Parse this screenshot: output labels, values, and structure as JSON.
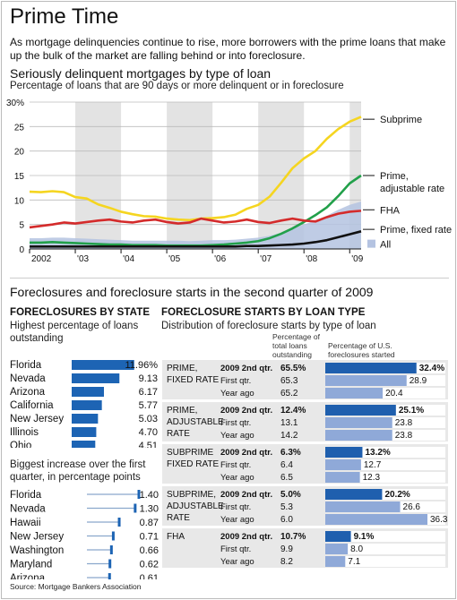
{
  "title": "Prime Time",
  "intro": "As mortgage delinquencies continue to rise, more borrowers with the prime loans that make up the bulk of the market are falling behind or into foreclosure.",
  "chart1": {
    "heading": "Seriously delinquent mortgages by type of loan",
    "subheading": "Percentage of loans that are 90 days or more delinquent or in foreclosure"
  },
  "chart_data": [
    {
      "type": "line",
      "title": "Seriously delinquent mortgages by type of loan",
      "subtitle": "Percentage of loans that are 90 days or more delinquent or in foreclosure",
      "ylim": [
        0,
        30
      ],
      "xlim": [
        2002,
        2009.25
      ],
      "yticks": [
        0,
        5,
        10,
        15,
        20,
        25,
        30
      ],
      "ytick_labels": [
        "0",
        "5",
        "10",
        "15",
        "20",
        "25",
        "30%"
      ],
      "xtick_labels": [
        "2002",
        "'03",
        "'04",
        "'05",
        "'06",
        "'07",
        "'08",
        "'09"
      ],
      "xtick_values": [
        2002,
        2003,
        2004,
        2005,
        2006,
        2007,
        2008,
        2009
      ],
      "grid": true,
      "series": [
        {
          "name": "Subprime",
          "color": "#f5d520",
          "x": [
            2002,
            2002.25,
            2002.5,
            2002.75,
            2003,
            2003.25,
            2003.5,
            2003.75,
            2004,
            2004.25,
            2004.5,
            2004.75,
            2005,
            2005.25,
            2005.5,
            2005.75,
            2006,
            2006.25,
            2006.5,
            2006.75,
            2007,
            2007.25,
            2007.5,
            2007.75,
            2008,
            2008.25,
            2008.5,
            2008.75,
            2009,
            2009.25
          ],
          "y": [
            11.7,
            11.6,
            11.8,
            11.6,
            10.6,
            10.3,
            9.1,
            8.4,
            7.6,
            7.1,
            6.7,
            6.6,
            6.2,
            6.0,
            5.9,
            6.2,
            6.3,
            6.5,
            7.0,
            8.2,
            9.0,
            10.7,
            13.5,
            16.5,
            18.5,
            20.0,
            22.5,
            24.5,
            26.0,
            27.0
          ]
        },
        {
          "name": "Prime, adjustable rate",
          "color": "#22a04a",
          "x": [
            2002,
            2002.25,
            2002.5,
            2002.75,
            2003,
            2003.25,
            2003.5,
            2003.75,
            2004,
            2004.25,
            2004.5,
            2004.75,
            2005,
            2005.25,
            2005.5,
            2005.75,
            2006,
            2006.25,
            2006.5,
            2006.75,
            2007,
            2007.25,
            2007.5,
            2007.75,
            2008,
            2008.25,
            2008.5,
            2008.75,
            2009,
            2009.25
          ],
          "y": [
            1.3,
            1.3,
            1.4,
            1.3,
            1.2,
            1.1,
            1.0,
            0.9,
            0.9,
            0.8,
            0.8,
            0.8,
            0.7,
            0.7,
            0.7,
            0.7,
            0.8,
            0.9,
            1.1,
            1.3,
            1.6,
            2.2,
            3.1,
            4.2,
            5.5,
            6.9,
            8.5,
            10.8,
            13.4,
            15.0
          ]
        },
        {
          "name": "FHA",
          "color": "#d42b2b",
          "x": [
            2002,
            2002.25,
            2002.5,
            2002.75,
            2003,
            2003.25,
            2003.5,
            2003.75,
            2004,
            2004.25,
            2004.5,
            2004.75,
            2005,
            2005.25,
            2005.5,
            2005.75,
            2006,
            2006.25,
            2006.5,
            2006.75,
            2007,
            2007.25,
            2007.5,
            2007.75,
            2008,
            2008.25,
            2008.5,
            2008.75,
            2009,
            2009.25
          ],
          "y": [
            4.4,
            4.7,
            5.0,
            5.4,
            5.2,
            5.5,
            5.8,
            6.0,
            5.6,
            5.4,
            5.8,
            6.0,
            5.5,
            5.2,
            5.4,
            6.2,
            5.8,
            5.4,
            5.6,
            6.0,
            5.5,
            5.3,
            5.8,
            6.2,
            5.8,
            5.6,
            6.5,
            7.2,
            7.6,
            7.8
          ]
        },
        {
          "name": "Prime, fixed rate",
          "color": "#111111",
          "x": [
            2002,
            2002.25,
            2002.5,
            2002.75,
            2003,
            2003.25,
            2003.5,
            2003.75,
            2004,
            2004.25,
            2004.5,
            2004.75,
            2005,
            2005.25,
            2005.5,
            2005.75,
            2006,
            2006.25,
            2006.5,
            2006.75,
            2007,
            2007.25,
            2007.5,
            2007.75,
            2008,
            2008.25,
            2008.5,
            2008.75,
            2009,
            2009.25
          ],
          "y": [
            0.5,
            0.5,
            0.5,
            0.5,
            0.5,
            0.5,
            0.5,
            0.5,
            0.5,
            0.5,
            0.5,
            0.5,
            0.5,
            0.5,
            0.5,
            0.5,
            0.5,
            0.5,
            0.5,
            0.6,
            0.6,
            0.7,
            0.8,
            0.9,
            1.1,
            1.4,
            1.8,
            2.4,
            3.0,
            3.6
          ]
        },
        {
          "name": "All",
          "color": "#b4c3e1",
          "fill": true,
          "x": [
            2002,
            2002.25,
            2002.5,
            2002.75,
            2003,
            2003.25,
            2003.5,
            2003.75,
            2004,
            2004.25,
            2004.5,
            2004.75,
            2005,
            2005.25,
            2005.5,
            2005.75,
            2006,
            2006.25,
            2006.5,
            2006.75,
            2007,
            2007.25,
            2007.5,
            2007.75,
            2008,
            2008.25,
            2008.5,
            2008.75,
            2009,
            2009.25
          ],
          "y": [
            2.2,
            2.2,
            2.3,
            2.3,
            2.2,
            2.1,
            2.0,
            1.9,
            1.8,
            1.7,
            1.7,
            1.7,
            1.7,
            1.7,
            1.6,
            1.7,
            1.8,
            1.8,
            1.9,
            2.1,
            2.3,
            2.7,
            3.3,
            4.2,
            5.0,
            5.8,
            6.8,
            8.0,
            9.0,
            9.7
          ]
        }
      ],
      "legend": [
        "Subprime",
        "Prime, adjustable rate",
        "FHA",
        "Prime, fixed rate",
        "All"
      ]
    },
    {
      "type": "bar",
      "title": "Highest percentage of loans outstanding",
      "categories": [
        "Florida",
        "Nevada",
        "Arizona",
        "California",
        "New Jersey",
        "Illinois",
        "Ohio"
      ],
      "values": [
        11.96,
        9.13,
        6.17,
        5.77,
        5.03,
        4.7,
        4.51
      ],
      "value_labels": [
        "11.96%",
        "9.13",
        "6.17",
        "5.77",
        "5.03",
        "4.70",
        "4.51"
      ]
    },
    {
      "type": "scatter",
      "title": "Biggest increase over the first quarter, in percentage points",
      "categories": [
        "Florida",
        "Nevada",
        "Hawaii",
        "New Jersey",
        "Washington",
        "Maryland",
        "Arizona"
      ],
      "values": [
        1.4,
        1.3,
        0.87,
        0.71,
        0.66,
        0.62,
        0.61
      ],
      "value_labels": [
        "1.40",
        "1.30",
        "0.87",
        "0.71",
        "0.66",
        "0.62",
        "0.61"
      ]
    },
    {
      "type": "bar",
      "title": "Distribution of foreclosure starts by type of loan",
      "columns": [
        "Percentage of total loans outstanding",
        "Percentage of U.S. foreclosures started"
      ],
      "groups": [
        {
          "label": "PRIME,\nFIXED RATE",
          "rows": [
            {
              "period": "2009 2nd qtr.",
              "outstanding": "65.5%",
              "started": 32.4,
              "started_label": "32.4%"
            },
            {
              "period": "First qtr.",
              "outstanding": "65.3",
              "started": 28.9,
              "started_label": "28.9"
            },
            {
              "period": "Year ago",
              "outstanding": "65.2",
              "started": 20.4,
              "started_label": "20.4"
            }
          ]
        },
        {
          "label": "PRIME,\nADJUSTABLE\nRATE",
          "rows": [
            {
              "period": "2009 2nd qtr.",
              "outstanding": "12.4%",
              "started": 25.1,
              "started_label": "25.1%"
            },
            {
              "period": "First qtr.",
              "outstanding": "13.1",
              "started": 23.8,
              "started_label": "23.8"
            },
            {
              "period": "Year ago",
              "outstanding": "14.2",
              "started": 23.8,
              "started_label": "23.8"
            }
          ]
        },
        {
          "label": "SUBPRIME\nFIXED RATE",
          "rows": [
            {
              "period": "2009 2nd qtr.",
              "outstanding": "6.3%",
              "started": 13.2,
              "started_label": "13.2%"
            },
            {
              "period": "First qtr.",
              "outstanding": "6.4",
              "started": 12.7,
              "started_label": "12.7"
            },
            {
              "period": "Year ago",
              "outstanding": "6.5",
              "started": 12.3,
              "started_label": "12.3"
            }
          ]
        },
        {
          "label": "SUBPRIME,\nADJUSTABLE\nRATE",
          "rows": [
            {
              "period": "2009 2nd qtr.",
              "outstanding": "5.0%",
              "started": 20.2,
              "started_label": "20.2%"
            },
            {
              "period": "First qtr.",
              "outstanding": "5.3",
              "started": 26.6,
              "started_label": "26.6"
            },
            {
              "period": "Year ago",
              "outstanding": "6.0",
              "started": 36.3,
              "started_label": "36.3"
            }
          ]
        },
        {
          "label": "FHA",
          "rows": [
            {
              "period": "2009 2nd qtr.",
              "outstanding": "10.7%",
              "started": 9.1,
              "started_label": "9.1%"
            },
            {
              "period": "First qtr.",
              "outstanding": "9.9",
              "started": 8.0,
              "started_label": "8.0"
            },
            {
              "period": "Year ago",
              "outstanding": "8.2",
              "started": 7.1,
              "started_label": "7.1"
            }
          ]
        }
      ]
    }
  ],
  "section2": {
    "heading": "Foreclosures and foreclosure starts in the second quarter of 2009",
    "by_state": "FORECLOSURES BY STATE",
    "by_state_note": "Highest percentage of loans outstanding",
    "increase_note": "Biggest increase over the first quarter, in percentage points",
    "by_loan": "FORECLOSURE STARTS BY LOAN TYPE",
    "by_loan_note": "Distribution of foreclosure starts by type of loan",
    "col1": "Percentage of total loans outstanding",
    "col2": "Percentage of U.S. foreclosures started"
  },
  "source": "Source: Mortgage Bankers Association",
  "colors": {
    "dark_blue": "#1f5fae",
    "light_blue": "#8fa9d8",
    "bar_blue": "#1d64b4",
    "tick_blue": "#8aa8cc"
  }
}
